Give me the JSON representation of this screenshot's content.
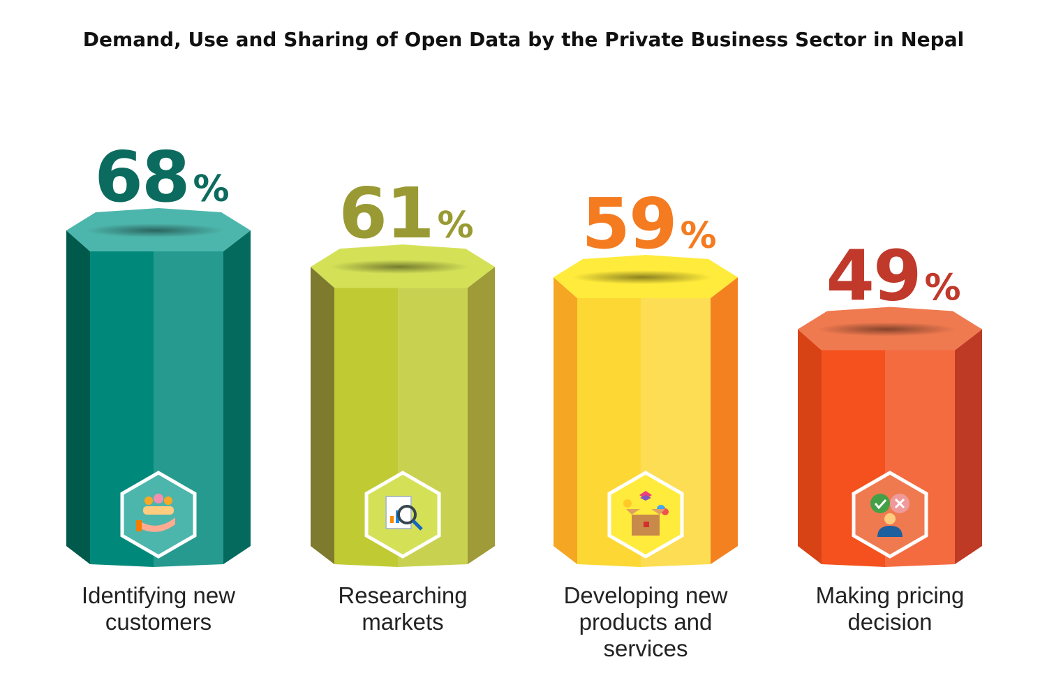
{
  "chart_data": {
    "type": "bar",
    "title": "Demand, Use and Sharing of Open Data by the Private Business Sector in Nepal",
    "categories": [
      "Identifying new customers",
      "Researching markets",
      "Developing new products and services",
      "Making pricing decision"
    ],
    "values": [
      68,
      61,
      59,
      49
    ],
    "unit": "%",
    "colors": [
      {
        "front": "#00897B",
        "left": "#005A4C",
        "right": "#046A5E",
        "top": "#4DB6AC",
        "text": "#0B6B5E",
        "icon": "people-hand-icon"
      },
      {
        "front": "#C0CA33",
        "left": "#7E7A2E",
        "right": "#9E9B38",
        "top": "#D4E157",
        "text": "#9A9A34",
        "icon": "magnifier-report-icon"
      },
      {
        "front": "#FDD835",
        "left": "#F5A623",
        "right": "#F4811F",
        "top": "#FFEB3B",
        "text": "#F47B20",
        "icon": "product-box-icon"
      },
      {
        "front": "#F4511E",
        "left": "#D84315",
        "right": "#BF3A24",
        "top": "#F07A50",
        "text": "#C0392B",
        "icon": "decision-person-icon"
      }
    ],
    "legend": "none",
    "grid": false
  }
}
